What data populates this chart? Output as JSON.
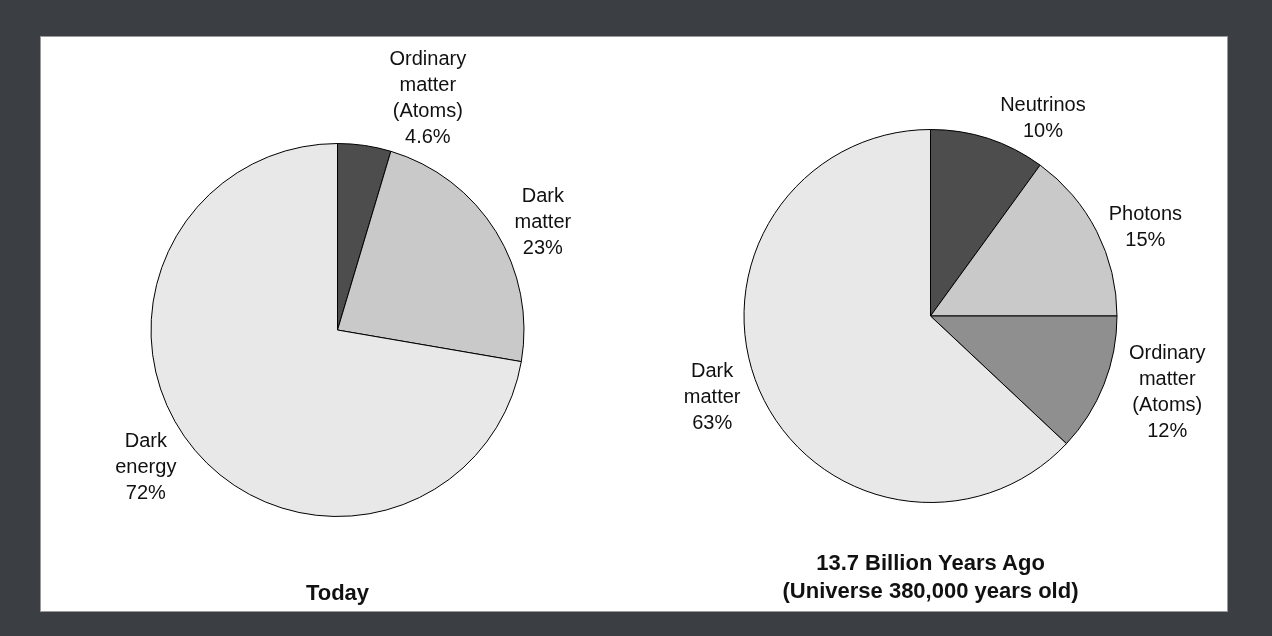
{
  "chart_data": [
    {
      "type": "pie",
      "title": "Today",
      "categories": [
        "Ordinary matter (Atoms)",
        "Dark matter",
        "Dark energy"
      ],
      "values": [
        4.6,
        23,
        72
      ],
      "value_labels": [
        "4.6%",
        "23%",
        "72%"
      ],
      "colors": [
        "#4d4d4d",
        "#c9c9c9",
        "#e8e8e8"
      ],
      "legend": false
    },
    {
      "type": "pie",
      "title": "13.7 Billion Years Ago\n(Universe 380,000 years old)",
      "categories": [
        "Neutrinos",
        "Photons",
        "Ordinary matter (Atoms)",
        "Dark matter"
      ],
      "values": [
        10,
        15,
        12,
        63
      ],
      "value_labels": [
        "10%",
        "15%",
        "12%",
        "63%"
      ],
      "colors": [
        "#4d4d4d",
        "#c9c9c9",
        "#8f8f8f",
        "#e8e8e8"
      ],
      "legend": false
    }
  ]
}
